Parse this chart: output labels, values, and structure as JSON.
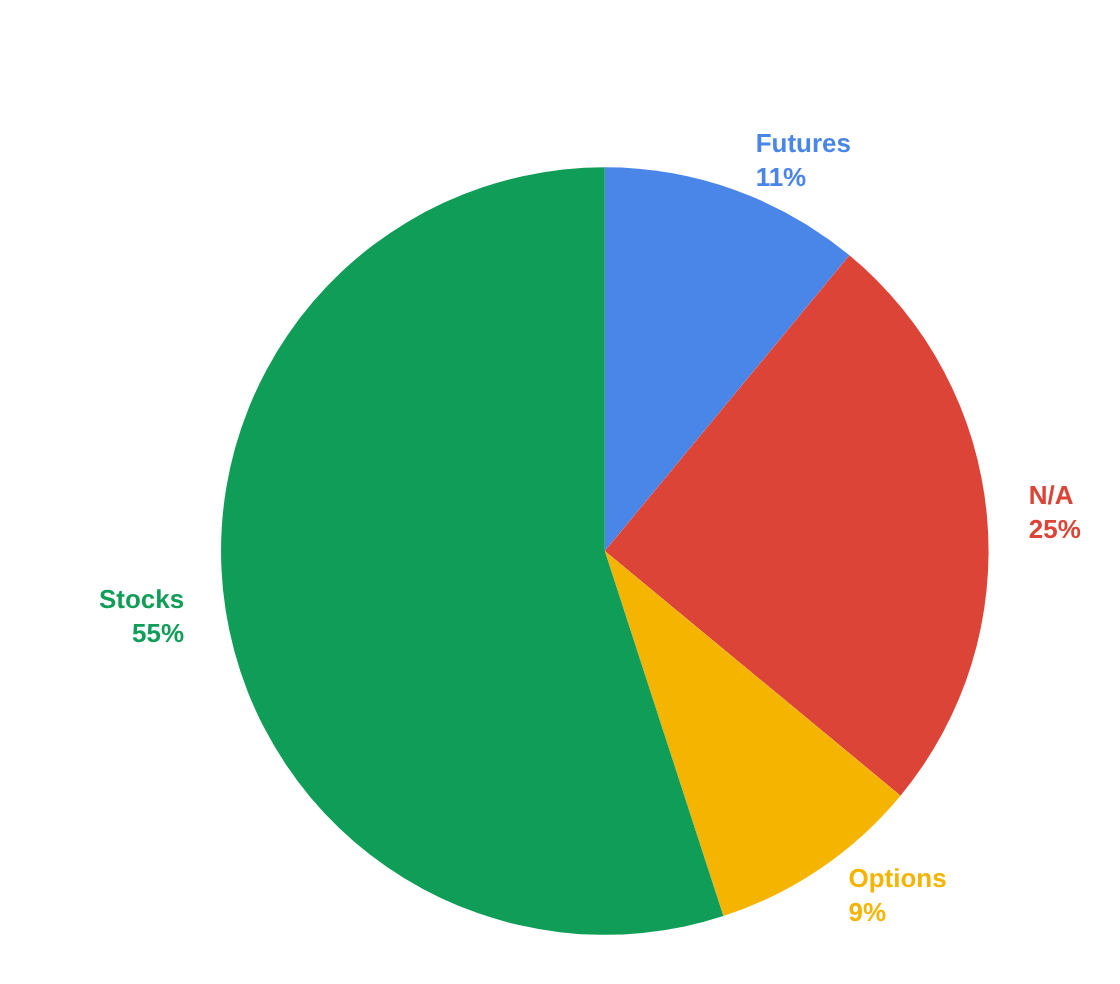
{
  "chart_data": {
    "type": "pie",
    "categories": [
      "Futures",
      "N/A",
      "Options",
      "Stocks"
    ],
    "values": [
      11,
      25,
      9,
      55
    ],
    "colors": [
      "#4a86e8",
      "#db4437",
      "#f4b400",
      "#0f9d58"
    ],
    "value_labels": [
      "11%",
      "25%",
      "9%",
      "55%"
    ],
    "legend": false
  }
}
